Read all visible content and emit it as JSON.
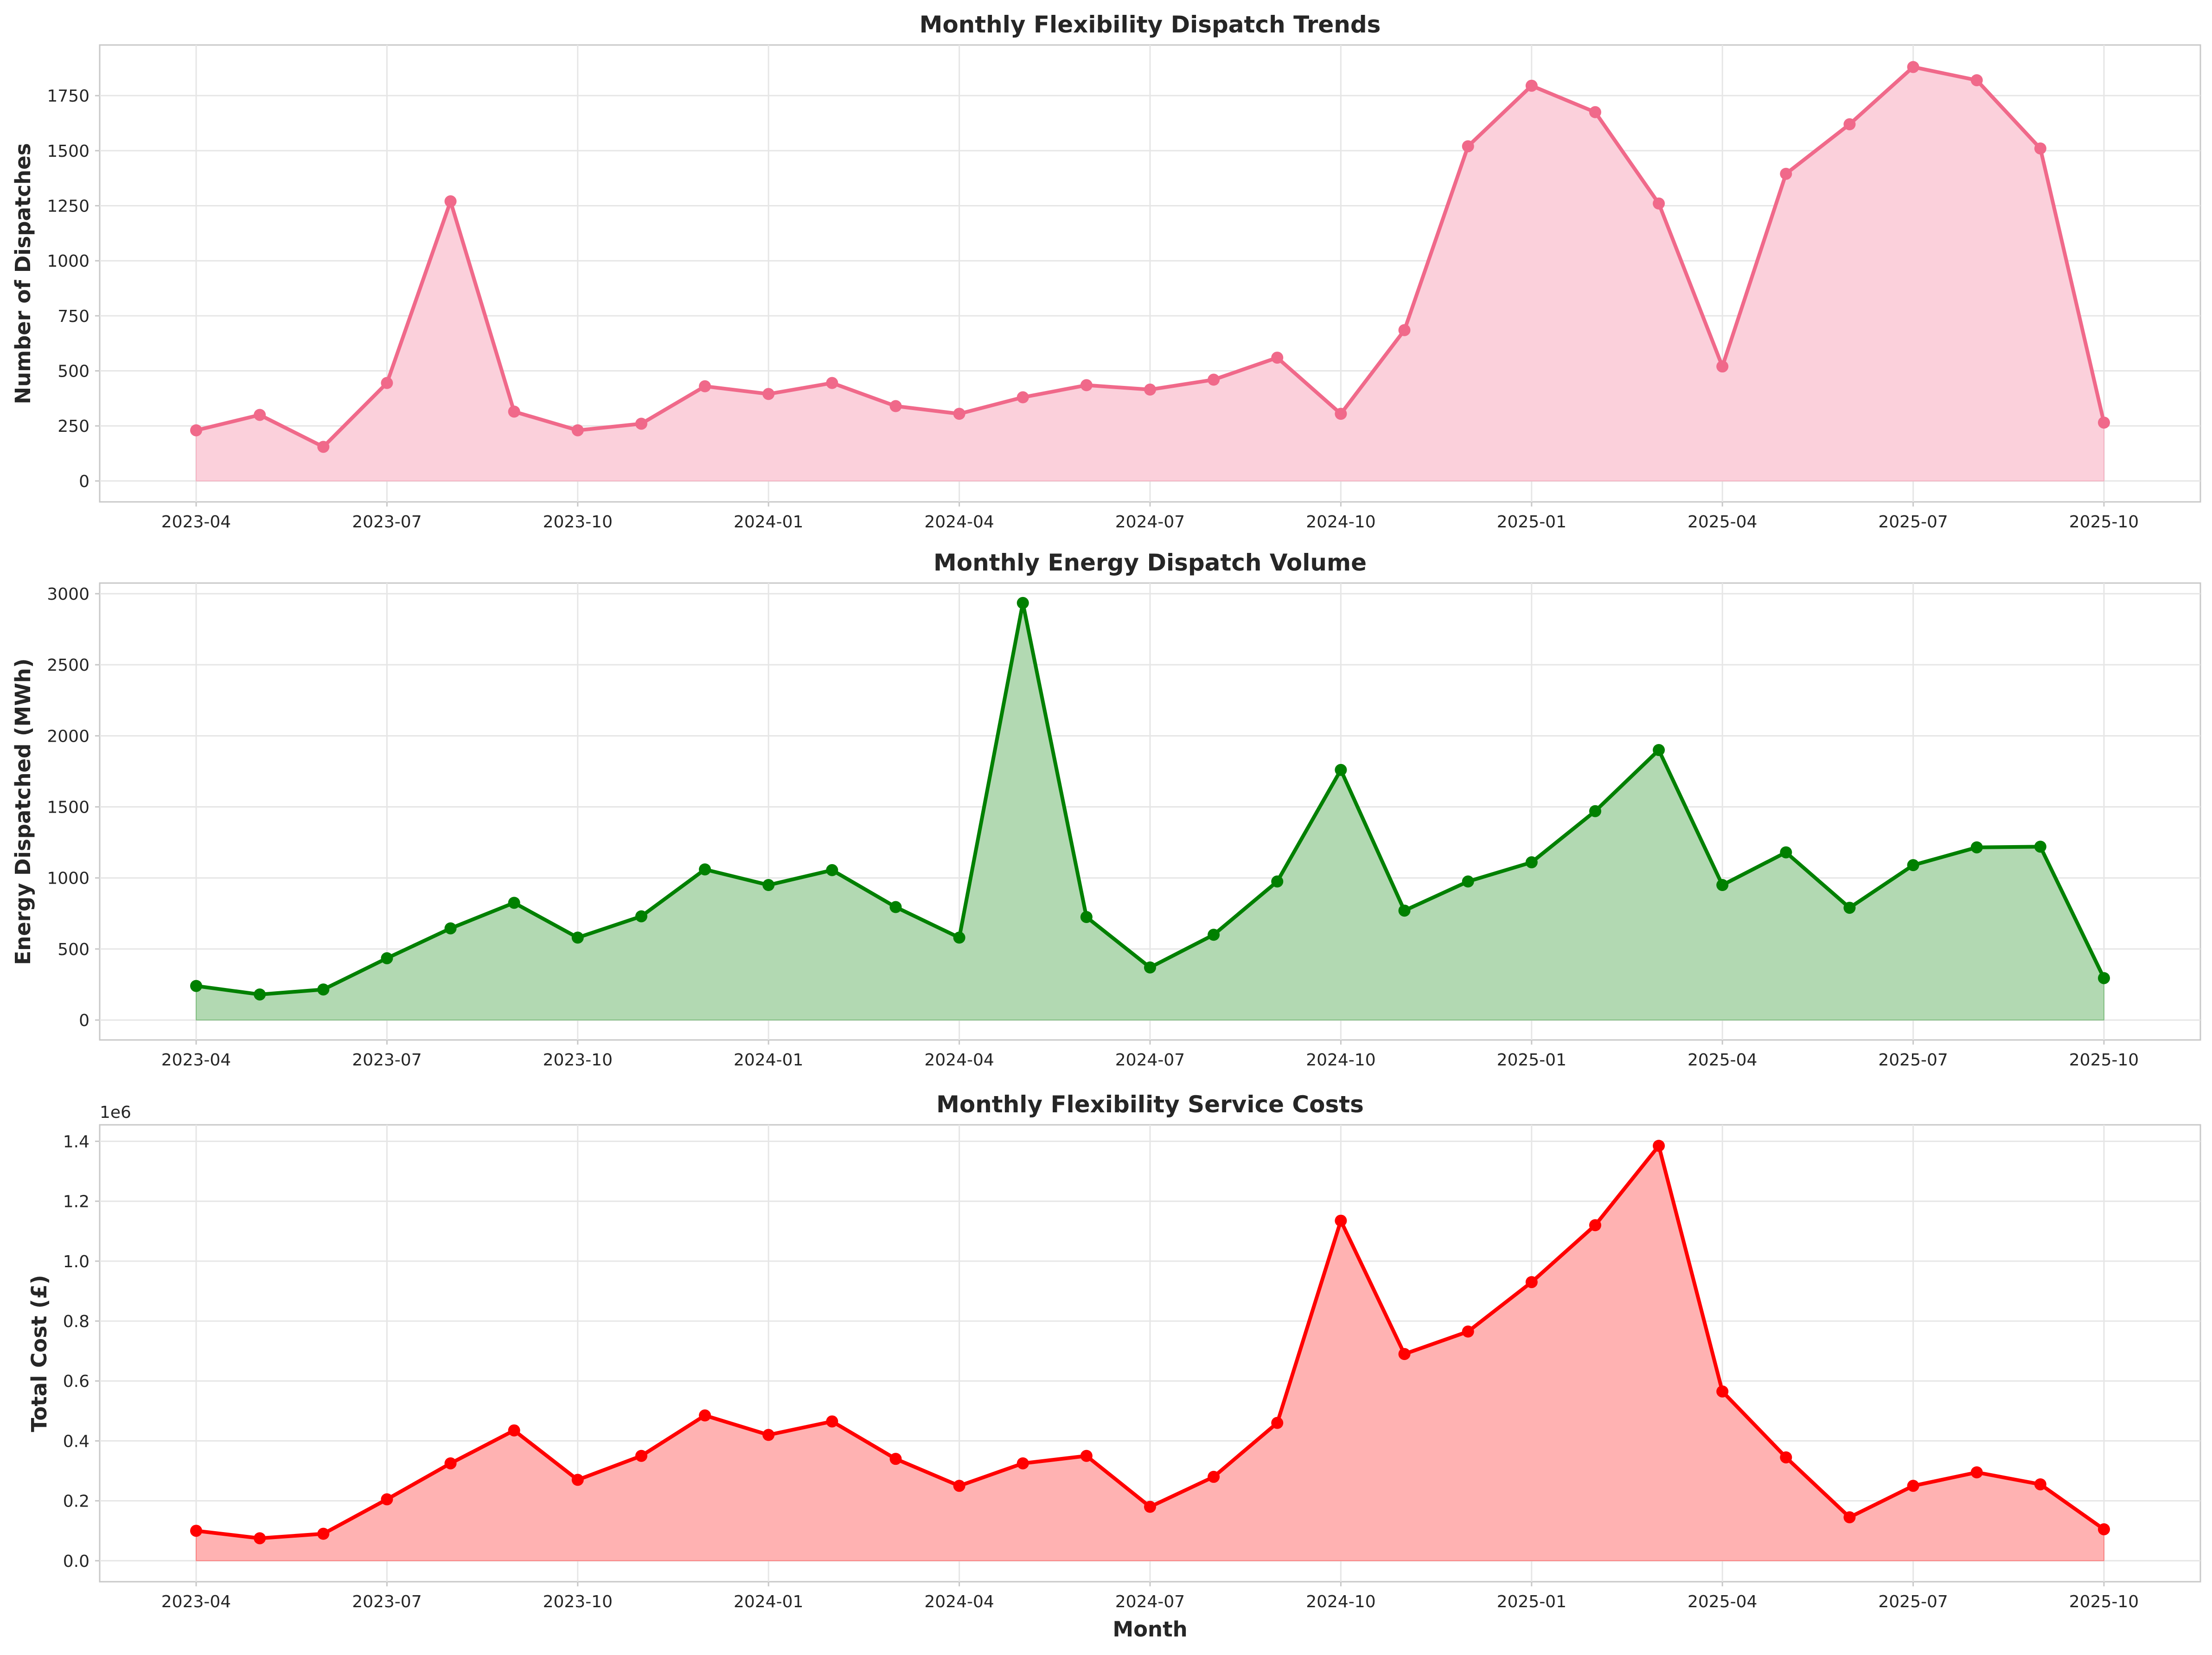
{
  "chart_data": [
    {
      "type": "area",
      "title": "Monthly Flexibility Dispatch Trends",
      "xlabel": "",
      "ylabel": "Number of Dispatches",
      "y_offset_label": "",
      "color": "#f0698a",
      "fill_color": "#fbd0db",
      "x": [
        "2023-04",
        "2023-05",
        "2023-06",
        "2023-07",
        "2023-08",
        "2023-09",
        "2023-10",
        "2023-11",
        "2023-12",
        "2024-01",
        "2024-02",
        "2024-03",
        "2024-04",
        "2024-05",
        "2024-06",
        "2024-07",
        "2024-08",
        "2024-09",
        "2024-10",
        "2024-11",
        "2024-12",
        "2025-01",
        "2025-02",
        "2025-03",
        "2025-04",
        "2025-05",
        "2025-06",
        "2025-07",
        "2025-08",
        "2025-09",
        "2025-10"
      ],
      "values": [
        230,
        300,
        155,
        445,
        1270,
        315,
        230,
        260,
        430,
        395,
        445,
        340,
        305,
        380,
        435,
        415,
        460,
        560,
        305,
        685,
        1520,
        1795,
        1675,
        1260,
        520,
        1395,
        1620,
        1880,
        1820,
        1510,
        265
      ],
      "ylim": [
        -95,
        1980
      ],
      "yticks": [
        0,
        250,
        500,
        750,
        1000,
        1250,
        1500,
        1750
      ],
      "ytick_labels": [
        "0",
        "250",
        "500",
        "750",
        "1000",
        "1250",
        "1500",
        "1750"
      ],
      "xtick_dates": [
        "2023-04",
        "2023-07",
        "2023-10",
        "2024-01",
        "2024-04",
        "2024-07",
        "2024-10",
        "2025-01",
        "2025-04",
        "2025-07",
        "2025-10"
      ],
      "xtick_labels": [
        "2023-04",
        "2023-07",
        "2023-10",
        "2024-01",
        "2024-04",
        "2024-07",
        "2024-10",
        "2025-01",
        "2025-04",
        "2025-07",
        "2025-10"
      ],
      "grid": true
    },
    {
      "type": "area",
      "title": "Monthly Energy Dispatch Volume",
      "xlabel": "",
      "ylabel": "Energy Dispatched (MWh)",
      "y_offset_label": "",
      "color": "#008000",
      "fill_color": "#b2d9b2",
      "x": [
        "2023-04",
        "2023-05",
        "2023-06",
        "2023-07",
        "2023-08",
        "2023-09",
        "2023-10",
        "2023-11",
        "2023-12",
        "2024-01",
        "2024-02",
        "2024-03",
        "2024-04",
        "2024-05",
        "2024-06",
        "2024-07",
        "2024-08",
        "2024-09",
        "2024-10",
        "2024-11",
        "2024-12",
        "2025-01",
        "2025-02",
        "2025-03",
        "2025-04",
        "2025-05",
        "2025-06",
        "2025-07",
        "2025-08",
        "2025-09",
        "2025-10"
      ],
      "values": [
        240,
        180,
        215,
        435,
        645,
        825,
        580,
        730,
        1060,
        950,
        1055,
        795,
        580,
        2935,
        725,
        370,
        600,
        975,
        1760,
        770,
        975,
        1110,
        1470,
        1900,
        950,
        1180,
        790,
        1090,
        1215,
        1220,
        295
      ],
      "ylim": [
        -140,
        3075
      ],
      "yticks": [
        0,
        500,
        1000,
        1500,
        2000,
        2500,
        3000
      ],
      "ytick_labels": [
        "0",
        "500",
        "1000",
        "1500",
        "2000",
        "2500",
        "3000"
      ],
      "xtick_dates": [
        "2023-04",
        "2023-07",
        "2023-10",
        "2024-01",
        "2024-04",
        "2024-07",
        "2024-10",
        "2025-01",
        "2025-04",
        "2025-07",
        "2025-10"
      ],
      "xtick_labels": [
        "2023-04",
        "2023-07",
        "2023-10",
        "2024-01",
        "2024-04",
        "2024-07",
        "2024-10",
        "2025-01",
        "2025-04",
        "2025-07",
        "2025-10"
      ],
      "grid": true
    },
    {
      "type": "area",
      "title": "Monthly Flexibility Service Costs",
      "xlabel": "Month",
      "ylabel": "Total Cost (£)",
      "y_offset_label": "1e6",
      "color": "#ff0000",
      "fill_color": "#ffb2b2",
      "x": [
        "2023-04",
        "2023-05",
        "2023-06",
        "2023-07",
        "2023-08",
        "2023-09",
        "2023-10",
        "2023-11",
        "2023-12",
        "2024-01",
        "2024-02",
        "2024-03",
        "2024-04",
        "2024-05",
        "2024-06",
        "2024-07",
        "2024-08",
        "2024-09",
        "2024-10",
        "2024-11",
        "2024-12",
        "2025-01",
        "2025-02",
        "2025-03",
        "2025-04",
        "2025-05",
        "2025-06",
        "2025-07",
        "2025-08",
        "2025-09",
        "2025-10"
      ],
      "values": [
        100000,
        75000,
        90000,
        205000,
        325000,
        435000,
        270000,
        350000,
        485000,
        420000,
        465000,
        340000,
        250000,
        325000,
        350000,
        180000,
        280000,
        460000,
        1135000,
        690000,
        765000,
        930000,
        1120000,
        1385000,
        565000,
        345000,
        145000,
        250000,
        295000,
        255000,
        105000
      ],
      "ylim": [
        -70000,
        1455000
      ],
      "yticks": [
        0,
        200000,
        400000,
        600000,
        800000,
        1000000,
        1200000,
        1400000
      ],
      "ytick_labels": [
        "0.0",
        "0.2",
        "0.4",
        "0.6",
        "0.8",
        "1.0",
        "1.2",
        "1.4"
      ],
      "xtick_dates": [
        "2023-04",
        "2023-07",
        "2023-10",
        "2024-01",
        "2024-04",
        "2024-07",
        "2024-10",
        "2025-01",
        "2025-04",
        "2025-07",
        "2025-10"
      ],
      "xtick_labels": [
        "2023-04",
        "2023-07",
        "2023-10",
        "2024-01",
        "2024-04",
        "2024-07",
        "2024-10",
        "2025-01",
        "2025-04",
        "2025-07",
        "2025-10"
      ],
      "grid": true
    }
  ]
}
